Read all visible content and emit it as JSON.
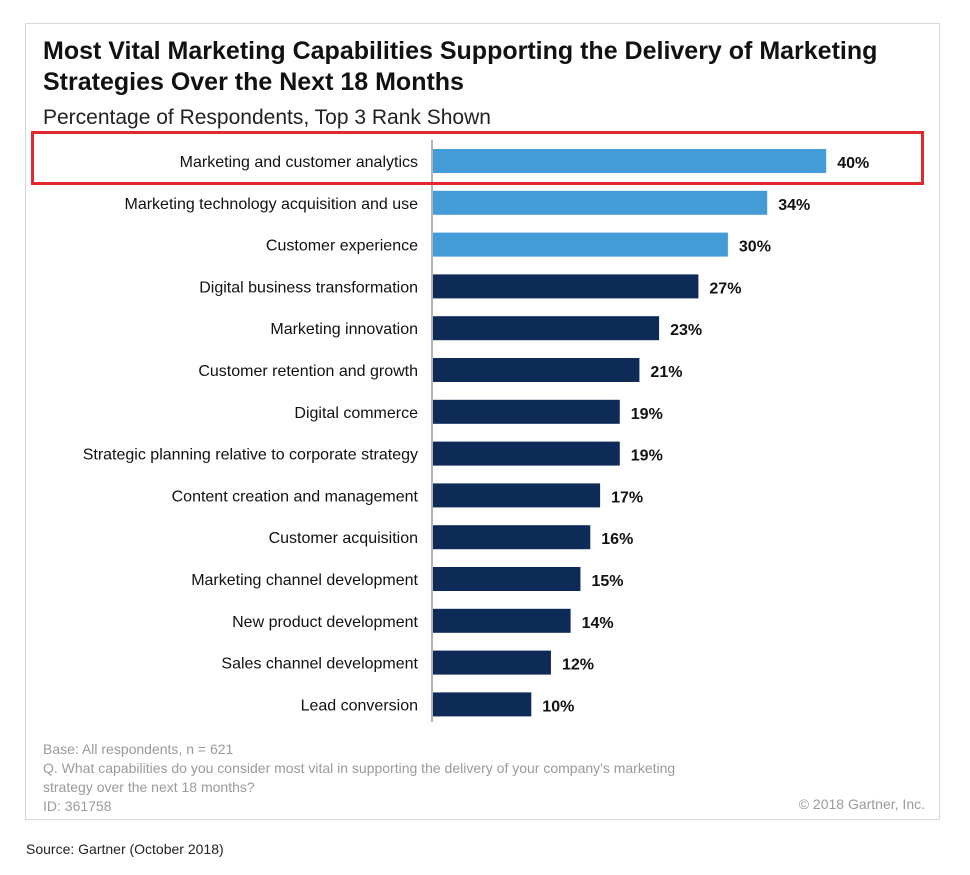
{
  "chart_data": {
    "type": "bar",
    "orientation": "horizontal",
    "title": "Most Vital Marketing Capabilities Supporting the Delivery of Marketing Strategies Over the Next 18 Months",
    "subtitle": "Percentage of Respondents, Top 3 Rank Shown",
    "xlabel": "",
    "ylabel": "",
    "xlim": [
      0,
      45
    ],
    "grid": false,
    "value_suffix": "%",
    "categories": [
      "Marketing and customer analytics",
      "Marketing technology acquisition and use",
      "Customer experience",
      "Digital business transformation",
      "Marketing innovation",
      "Customer retention and growth",
      "Digital commerce",
      "Strategic planning relative to corporate strategy",
      "Content creation and management",
      "Customer acquisition",
      "Marketing channel development",
      "New product development",
      "Sales channel development",
      "Lead conversion"
    ],
    "values": [
      40,
      34,
      30,
      27,
      23,
      21,
      19,
      19,
      17,
      16,
      15,
      14,
      12,
      10
    ],
    "labels": [
      "40%",
      "34%",
      "30%",
      "27%",
      "23%",
      "21%",
      "19%",
      "19%",
      "17%",
      "16%",
      "15%",
      "14%",
      "12%",
      "10%"
    ],
    "top_count": 3,
    "highlighted_category": "Marketing and customer analytics",
    "colors": {
      "top": "#439bd7",
      "rest": "#0e2a57",
      "highlight_box": "#e0282e"
    }
  },
  "footer": {
    "base": "Base: All respondents, n = 621",
    "question_line1": "Q. What capabilities do you consider most vital in supporting the delivery of your company's marketing",
    "question_line2": "strategy over the next 18 months?",
    "id": "ID: 361758",
    "copyright": "© 2018 Gartner, Inc."
  },
  "source": "Source: Gartner (October 2018)"
}
